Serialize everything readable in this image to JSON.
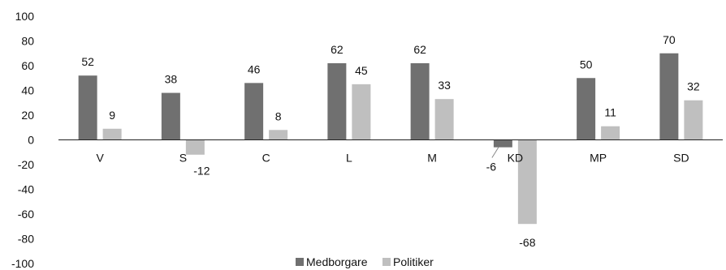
{
  "chart_data": {
    "type": "bar",
    "categories": [
      "V",
      "S",
      "C",
      "L",
      "M",
      "KD",
      "MP",
      "SD"
    ],
    "series": [
      {
        "name": "Medborgare",
        "values": [
          52,
          38,
          46,
          62,
          62,
          -6,
          50,
          70
        ],
        "color": "#707070"
      },
      {
        "name": "Politiker",
        "values": [
          9,
          -12,
          8,
          45,
          33,
          -68,
          11,
          32
        ],
        "color": "#bfbfbf"
      }
    ],
    "value_labels": [
      [
        "52",
        "38",
        "46",
        "62",
        "62",
        "-6",
        "50",
        "70"
      ],
      [
        "9",
        "-12",
        "8",
        "45",
        "33",
        "-68",
        "11",
        "32"
      ]
    ],
    "yticks": [
      "100",
      "80",
      "60",
      "40",
      "20",
      "0",
      "-20",
      "-40",
      "-60",
      "-80",
      "-100"
    ],
    "ylim": [
      -100,
      100
    ],
    "grid": false,
    "legend_position": "bottom-center",
    "title": "",
    "xlabel": "",
    "ylabel": ""
  }
}
